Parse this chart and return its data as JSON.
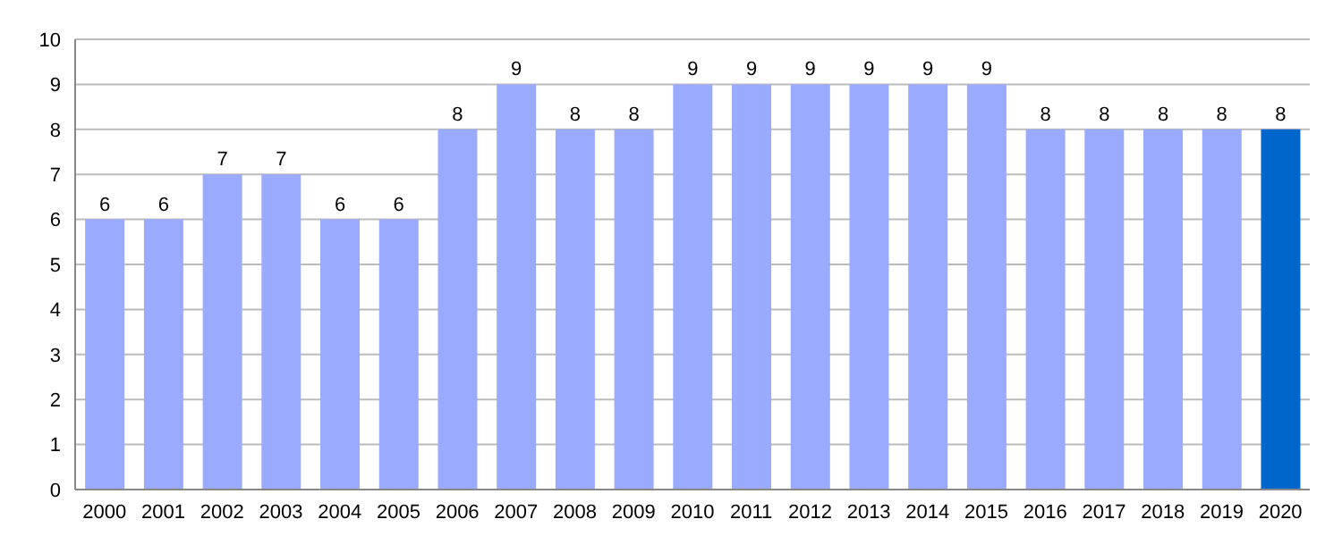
{
  "chart_data": {
    "type": "bar",
    "categories": [
      "2000",
      "2001",
      "2002",
      "2003",
      "2004",
      "2005",
      "2006",
      "2007",
      "2008",
      "2009",
      "2010",
      "2011",
      "2012",
      "2013",
      "2014",
      "2015",
      "2016",
      "2017",
      "2018",
      "2019",
      "2020"
    ],
    "values": [
      6,
      6,
      7,
      7,
      6,
      6,
      8,
      9,
      8,
      8,
      9,
      9,
      9,
      9,
      9,
      9,
      8,
      8,
      8,
      8,
      8
    ],
    "colors": [
      "#99aaff",
      "#99aaff",
      "#99aaff",
      "#99aaff",
      "#99aaff",
      "#99aaff",
      "#99aaff",
      "#99aaff",
      "#99aaff",
      "#99aaff",
      "#99aaff",
      "#99aaff",
      "#99aaff",
      "#99aaff",
      "#99aaff",
      "#99aaff",
      "#99aaff",
      "#99aaff",
      "#99aaff",
      "#99aaff",
      "#0066cc"
    ],
    "ylim": [
      0,
      10
    ],
    "yticks": [
      0,
      1,
      2,
      3,
      4,
      5,
      6,
      7,
      8,
      9,
      10
    ],
    "grid": "y",
    "data_labels": true
  }
}
